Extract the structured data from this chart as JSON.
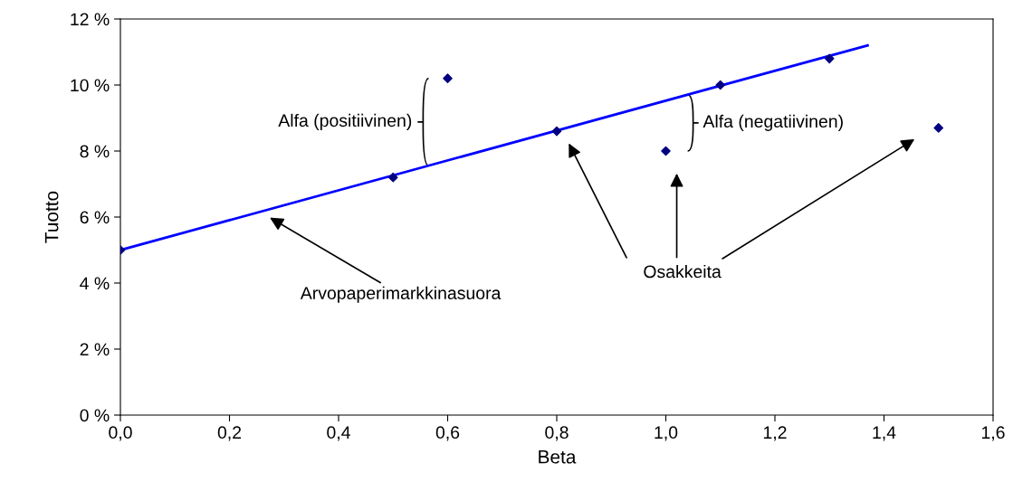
{
  "chart_data": {
    "type": "scatter",
    "xlabel": "Beta",
    "ylabel": "Tuotto",
    "xlim": [
      0,
      1.6
    ],
    "ylim": [
      0,
      12
    ],
    "xticks": [
      {
        "value": 0,
        "label": "0,0"
      },
      {
        "value": 0.2,
        "label": "0,2"
      },
      {
        "value": 0.4,
        "label": "0,4"
      },
      {
        "value": 0.6,
        "label": "0,6"
      },
      {
        "value": 0.8,
        "label": "0,8"
      },
      {
        "value": 1.0,
        "label": "1,0"
      },
      {
        "value": 1.2,
        "label": "1,2"
      },
      {
        "value": 1.4,
        "label": "1,4"
      },
      {
        "value": 1.6,
        "label": "1,6"
      }
    ],
    "yticks": [
      {
        "value": 0,
        "label": "0 %"
      },
      {
        "value": 2,
        "label": "2 %"
      },
      {
        "value": 4,
        "label": "4 %"
      },
      {
        "value": 6,
        "label": "6 %"
      },
      {
        "value": 8,
        "label": "8 %"
      },
      {
        "value": 10,
        "label": "10 %"
      },
      {
        "value": 12,
        "label": "12 %"
      }
    ],
    "grid": false,
    "series": [
      {
        "type": "line",
        "color": "#0000ff",
        "marker": "none",
        "x": [
          0,
          1.37
        ],
        "values": [
          5.0,
          11.2
        ]
      },
      {
        "color": "#000080",
        "marker": "diamond",
        "x": [
          0,
          0.5,
          0.8,
          1.1,
          1.3
        ],
        "values": [
          5.0,
          7.2,
          8.6,
          10.0,
          10.8
        ]
      },
      {
        "color": "#000080",
        "marker": "diamond",
        "x": [
          0.6,
          1.0,
          1.5
        ],
        "values": [
          10.2,
          8.0,
          8.7
        ]
      }
    ],
    "annotations": [
      {
        "text": "Alfa (positiivinen)",
        "x": 0.6,
        "y": 10.2
      },
      {
        "text": "Alfa (negatiivinen)",
        "x": 1.0,
        "y": 8.0
      },
      "Arvopaperimarkkinasuora",
      "Osakkeita"
    ]
  }
}
